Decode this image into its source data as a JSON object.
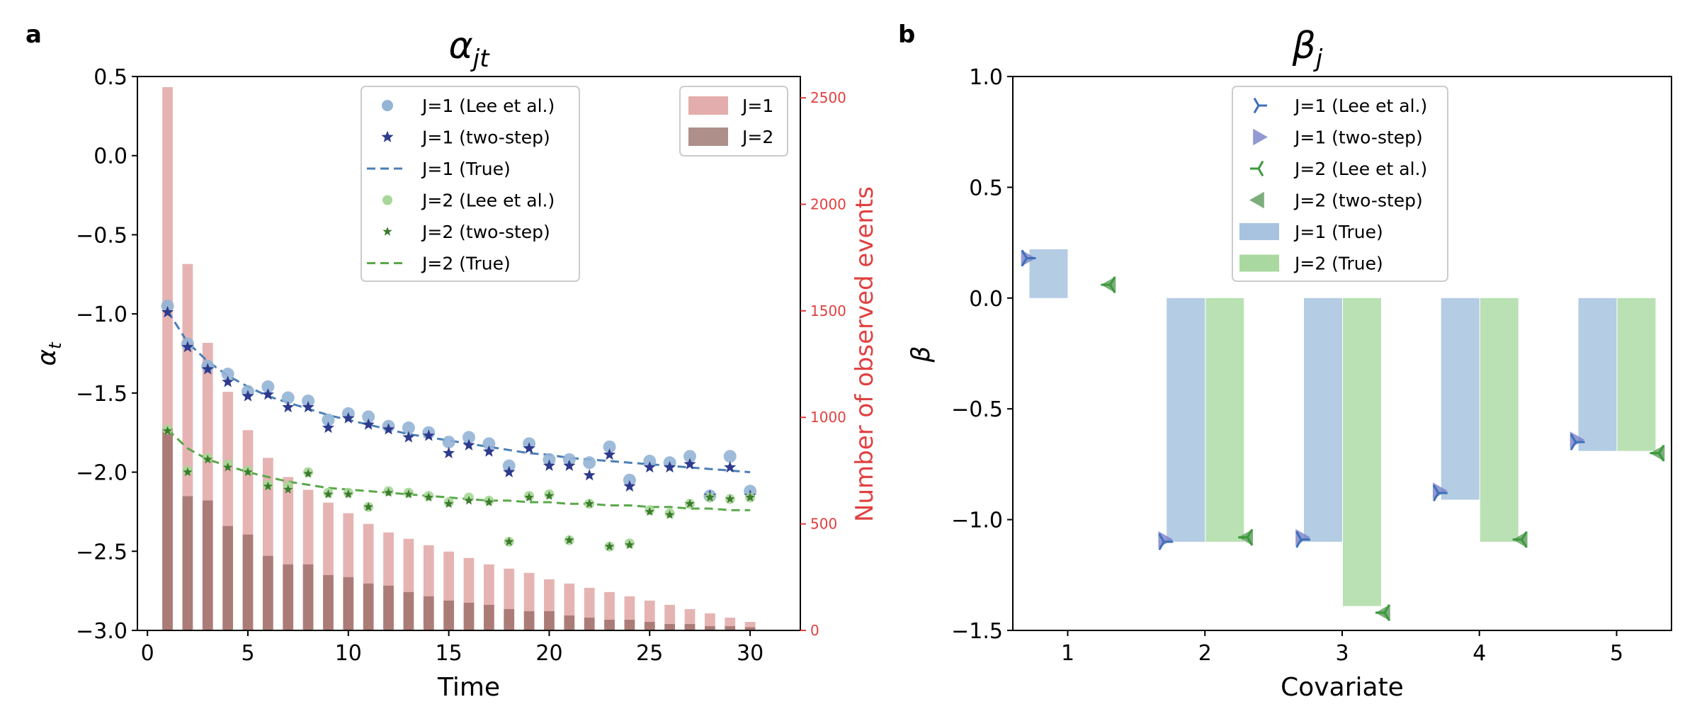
{
  "colors": {
    "j1_lee": "#94b4d6",
    "j1_two": "#2e3a8c",
    "j1_true": "#4a7fb5",
    "j2_lee": "#a6d796",
    "j2_two": "#3c7a2e",
    "j2_true": "#5aa84a",
    "count_j1": "#d98a8a",
    "count_j2": "#8c6058",
    "right_axis": "#e04040",
    "b_j1_lee": "#3c70b8",
    "b_j1_two": "#7880c8",
    "b_j2_lee": "#3a9a3a",
    "b_j2_two": "#5a9a5a",
    "b_j1_true": "#a7c3df",
    "b_j2_true": "#a9d9a1"
  },
  "chart_data": [
    {
      "panel_label": "a",
      "type": "scatter",
      "title": "α_jt",
      "xlabel": "Time",
      "ylabel": "α_t",
      "y2label": "Number of observed events",
      "xlim": [
        -0.5,
        32.5
      ],
      "ylim": [
        -3.0,
        0.5
      ],
      "y2lim": [
        0,
        2600
      ],
      "xticks": [
        0,
        5,
        10,
        15,
        20,
        25,
        30
      ],
      "yticks": [
        -3.0,
        -2.5,
        -2.0,
        -1.5,
        -1.0,
        -0.5,
        0.0,
        0.5
      ],
      "y2ticks": [
        0,
        500,
        1000,
        1500,
        2000,
        2500
      ],
      "x": [
        1,
        2,
        3,
        4,
        5,
        6,
        7,
        8,
        9,
        10,
        11,
        12,
        13,
        14,
        15,
        16,
        17,
        18,
        19,
        20,
        21,
        22,
        23,
        24,
        25,
        26,
        27,
        28,
        29,
        30
      ],
      "series": [
        {
          "name": "J=1 (Lee et al.)",
          "kind": "markers",
          "marker": "circle",
          "values": [
            -0.95,
            -1.19,
            -1.33,
            -1.38,
            -1.49,
            -1.46,
            -1.53,
            -1.55,
            -1.67,
            -1.63,
            -1.65,
            -1.71,
            -1.72,
            -1.75,
            -1.81,
            -1.78,
            -1.82,
            -1.96,
            -1.82,
            -1.92,
            -1.92,
            -1.94,
            -1.84,
            -2.05,
            -1.93,
            -1.94,
            -1.9,
            -2.15,
            -1.9,
            -2.12
          ]
        },
        {
          "name": "J=1 (two-step)",
          "kind": "markers",
          "marker": "star",
          "values": [
            -0.99,
            -1.21,
            -1.35,
            -1.43,
            -1.52,
            -1.51,
            -1.59,
            -1.59,
            -1.72,
            -1.66,
            -1.7,
            -1.73,
            -1.78,
            -1.77,
            -1.88,
            -1.83,
            -1.87,
            -2.0,
            -1.85,
            -1.96,
            -1.96,
            -2.02,
            -1.89,
            -2.09,
            -1.97,
            -1.97,
            -1.95,
            -2.15,
            -1.97,
            -2.15
          ]
        },
        {
          "name": "J=1 (True)",
          "kind": "dashed-line",
          "values": [
            -0.98,
            -1.18,
            -1.3,
            -1.39,
            -1.46,
            -1.52,
            -1.56,
            -1.6,
            -1.64,
            -1.67,
            -1.7,
            -1.73,
            -1.76,
            -1.78,
            -1.8,
            -1.82,
            -1.84,
            -1.86,
            -1.88,
            -1.89,
            -1.91,
            -1.92,
            -1.93,
            -1.94,
            -1.95,
            -1.96,
            -1.97,
            -1.98,
            -1.99,
            -2.0
          ]
        },
        {
          "name": "J=2 (Lee et al.)",
          "kind": "markers",
          "marker": "circle",
          "values": [
            -1.73,
            -1.99,
            -1.91,
            -1.95,
            -1.99,
            -2.08,
            -2.09,
            -2.0,
            -2.13,
            -2.13,
            -2.22,
            -2.12,
            -2.13,
            -2.15,
            -2.19,
            -2.16,
            -2.18,
            -2.44,
            -2.15,
            -2.14,
            -2.43,
            -2.2,
            -2.47,
            -2.45,
            -2.24,
            -2.26,
            -2.2,
            -2.16,
            -2.17,
            -2.16
          ]
        },
        {
          "name": "J=2 (two-step)",
          "kind": "markers",
          "marker": "star",
          "values": [
            -1.74,
            -2.0,
            -1.92,
            -1.97,
            -2.0,
            -2.09,
            -2.11,
            -2.01,
            -2.14,
            -2.14,
            -2.22,
            -2.13,
            -2.14,
            -2.16,
            -2.2,
            -2.18,
            -2.19,
            -2.44,
            -2.16,
            -2.15,
            -2.43,
            -2.2,
            -2.47,
            -2.46,
            -2.25,
            -2.27,
            -2.2,
            -2.16,
            -2.17,
            -2.16
          ]
        },
        {
          "name": "J=2 (True)",
          "kind": "dashed-line",
          "values": [
            -1.73,
            -1.85,
            -1.92,
            -1.96,
            -2.0,
            -2.03,
            -2.06,
            -2.08,
            -2.1,
            -2.11,
            -2.12,
            -2.13,
            -2.14,
            -2.15,
            -2.16,
            -2.17,
            -2.18,
            -2.18,
            -2.19,
            -2.19,
            -2.2,
            -2.2,
            -2.21,
            -2.21,
            -2.22,
            -2.22,
            -2.23,
            -2.23,
            -2.24,
            -2.24
          ]
        }
      ],
      "count_series": [
        {
          "name": "J=1",
          "axis": "right",
          "values": [
            2550,
            1720,
            1350,
            1120,
            940,
            810,
            720,
            660,
            600,
            550,
            500,
            460,
            430,
            400,
            370,
            340,
            310,
            290,
            270,
            240,
            220,
            200,
            180,
            160,
            140,
            120,
            100,
            80,
            60,
            40
          ]
        },
        {
          "name": "J=2",
          "axis": "right",
          "values": [
            950,
            630,
            610,
            490,
            450,
            350,
            310,
            310,
            260,
            250,
            220,
            210,
            180,
            160,
            140,
            130,
            120,
            100,
            90,
            90,
            70,
            60,
            50,
            50,
            40,
            30,
            30,
            20,
            20,
            15
          ]
        }
      ],
      "legend_markers": [
        "J=1 (Lee et al.)",
        "J=1 (two-step)",
        "J=1 (True)",
        "J=2 (Lee et al.)",
        "J=2 (two-step)",
        "J=2 (True)"
      ],
      "legend_bars": [
        "J=1",
        "J=2"
      ]
    },
    {
      "panel_label": "b",
      "type": "bar",
      "title": "β_j",
      "xlabel": "Covariate",
      "ylabel": "β",
      "xlim": [
        0.6,
        5.4
      ],
      "ylim": [
        -1.5,
        1.0
      ],
      "yticks": [
        -1.5,
        -1.0,
        -0.5,
        0.0,
        0.5,
        1.0
      ],
      "categories": [
        1,
        2,
        3,
        4,
        5
      ],
      "series": [
        {
          "name": "J=1 (True)",
          "kind": "bar",
          "values": [
            0.22,
            -1.1,
            -1.1,
            -0.91,
            -0.69
          ]
        },
        {
          "name": "J=2 (True)",
          "kind": "bar",
          "values": [
            0.0,
            -1.1,
            -1.39,
            -1.1,
            -0.69
          ]
        },
        {
          "name": "J=1 (Lee et al.)",
          "kind": "marker",
          "marker": "tri_right",
          "values": [
            0.18,
            -1.1,
            -1.09,
            -0.88,
            -0.65
          ]
        },
        {
          "name": "J=1 (two-step)",
          "kind": "marker",
          "marker": "triangle_right",
          "values": [
            0.18,
            -1.09,
            -1.08,
            -0.87,
            -0.64
          ]
        },
        {
          "name": "J=2 (Lee et al.)",
          "kind": "marker",
          "marker": "tri_left",
          "values": [
            0.06,
            -1.08,
            -1.42,
            -1.09,
            -0.7
          ]
        },
        {
          "name": "J=2 (two-step)",
          "kind": "marker",
          "marker": "triangle_left",
          "values": [
            0.06,
            -1.08,
            -1.42,
            -1.09,
            -0.7
          ]
        }
      ],
      "legend": [
        "J=1 (Lee et al.)",
        "J=1 (two-step)",
        "J=2 (Lee et al.)",
        "J=2 (two-step)",
        "J=1 (True)",
        "J=2 (True)"
      ]
    }
  ]
}
